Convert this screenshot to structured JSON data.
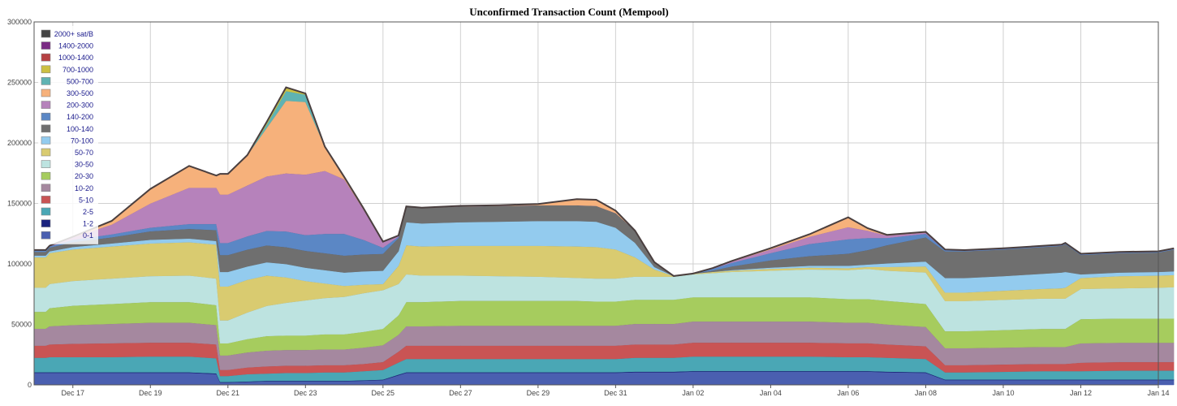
{
  "chart_data": {
    "type": "area",
    "stacked": true,
    "title": "Unconfirmed Transaction Count (Mempool)",
    "xlabel": "",
    "ylabel": "",
    "ylim": [
      0,
      300000
    ],
    "y_ticks": [
      "0",
      "50000",
      "100000",
      "150000",
      "200000",
      "250000",
      "300000"
    ],
    "y_tick_values": [
      0,
      50000,
      100000,
      150000,
      200000,
      250000,
      300000
    ],
    "x_range_days": [
      0,
      29
    ],
    "x_ticks": [
      {
        "day": 1,
        "label": "Dec 17"
      },
      {
        "day": 3,
        "label": "Dec 19"
      },
      {
        "day": 5,
        "label": "Dec 21"
      },
      {
        "day": 7,
        "label": "Dec 23"
      },
      {
        "day": 9,
        "label": "Dec 25"
      },
      {
        "day": 11,
        "label": "Dec 27"
      },
      {
        "day": 13,
        "label": "Dec 29"
      },
      {
        "day": 15,
        "label": "Dec 31"
      },
      {
        "day": 17,
        "label": "Jan 02"
      },
      {
        "day": 19,
        "label": "Jan 04"
      },
      {
        "day": 21,
        "label": "Jan 06"
      },
      {
        "day": 23,
        "label": "Jan 08"
      },
      {
        "day": 25,
        "label": "Jan 10"
      },
      {
        "day": 27,
        "label": "Jan 12"
      },
      {
        "day": 29,
        "label": "Jan 14"
      }
    ],
    "grid": true,
    "legend_position": "top-left",
    "x": [
      0,
      0.3,
      0.4,
      1.0,
      2.0,
      3.0,
      4.0,
      4.7,
      4.8,
      5.0,
      5.5,
      6.0,
      6.5,
      7.0,
      7.5,
      8.0,
      8.5,
      9.0,
      9.4,
      9.6,
      10.0,
      11.0,
      12.0,
      13.0,
      14.0,
      14.5,
      15.0,
      15.5,
      16.0,
      16.5,
      17.0,
      17.5,
      18.0,
      19.0,
      20.0,
      21.0,
      21.5,
      22.0,
      23.0,
      23.5,
      24.0,
      25.0,
      26.0,
      26.5,
      26.6,
      27.0,
      28.0,
      29.0,
      29.4
    ],
    "series": [
      {
        "name": "0-1",
        "color": "#4a5fb0",
        "values": [
          10000,
          10000,
          10000,
          10000,
          10000,
          10000,
          10000,
          9000,
          2000,
          2000,
          2500,
          3000,
          3000,
          3000,
          3000,
          3000,
          3500,
          4000,
          8000,
          10000,
          10000,
          10000,
          10000,
          10000,
          10000,
          10000,
          10000,
          10500,
          10500,
          10500,
          11000,
          11000,
          11000,
          11000,
          11000,
          11000,
          11000,
          10500,
          10000,
          4000,
          4000,
          4000,
          4000,
          4000,
          4000,
          4000,
          4000,
          4000,
          4000
        ]
      },
      {
        "name": "1-2",
        "color": "#1a237e",
        "values": [
          500,
          500,
          500,
          500,
          500,
          500,
          500,
          500,
          400,
          400,
          400,
          400,
          400,
          400,
          400,
          400,
          400,
          400,
          500,
          500,
          500,
          500,
          500,
          500,
          500,
          500,
          500,
          500,
          500,
          500,
          500,
          500,
          500,
          500,
          500,
          500,
          500,
          500,
          500,
          400,
          400,
          400,
          400,
          400,
          400,
          400,
          400,
          400,
          400
        ]
      },
      {
        "name": "2-5",
        "color": "#4aa7b5",
        "values": [
          12000,
          12000,
          12500,
          12500,
          12500,
          13000,
          13000,
          12500,
          5000,
          5000,
          6000,
          6000,
          6500,
          6500,
          7000,
          7000,
          7500,
          8000,
          10000,
          11000,
          11000,
          11000,
          11000,
          11000,
          11000,
          11000,
          11000,
          11500,
          11500,
          11500,
          12000,
          12000,
          12000,
          12000,
          12000,
          11500,
          11500,
          11500,
          11000,
          6000,
          6000,
          6500,
          7000,
          7000,
          7000,
          7000,
          7500,
          7500,
          7500
        ]
      },
      {
        "name": "5-10",
        "color": "#c95454",
        "values": [
          10000,
          10000,
          10500,
          11000,
          11500,
          11500,
          11500,
          11500,
          5000,
          5000,
          5500,
          6000,
          6000,
          6000,
          6000,
          6000,
          6000,
          6500,
          9000,
          11000,
          11000,
          11000,
          11000,
          11000,
          11000,
          11000,
          11000,
          11000,
          11000,
          11000,
          11500,
          11500,
          11500,
          11500,
          11500,
          11500,
          11500,
          11000,
          10500,
          6000,
          6000,
          6000,
          6000,
          6000,
          6000,
          7000,
          7000,
          7000,
          7000
        ]
      },
      {
        "name": "10-20",
        "color": "#a5889f",
        "values": [
          14000,
          14000,
          15000,
          15500,
          16000,
          16500,
          16500,
          16000,
          12000,
          12000,
          12500,
          13000,
          13000,
          13000,
          13000,
          13000,
          13500,
          14000,
          14000,
          16000,
          16000,
          16500,
          16500,
          16500,
          16500,
          16500,
          16500,
          17000,
          17000,
          17000,
          17500,
          17500,
          17500,
          17500,
          17500,
          17000,
          17000,
          16500,
          16000,
          14000,
          14000,
          14000,
          14000,
          14000,
          14000,
          16000,
          16000,
          16000,
          16000
        ]
      },
      {
        "name": "20-30",
        "color": "#a6cc5e",
        "values": [
          14000,
          14000,
          15000,
          16000,
          16500,
          17000,
          17000,
          16500,
          10000,
          10000,
          11000,
          12000,
          12000,
          12000,
          12500,
          12500,
          13000,
          13500,
          16000,
          20000,
          20000,
          20500,
          20500,
          20500,
          20500,
          20000,
          20000,
          20000,
          20000,
          20000,
          20000,
          20000,
          20000,
          20000,
          20000,
          19500,
          19500,
          19500,
          19000,
          14000,
          14000,
          14500,
          15000,
          15000,
          15000,
          20000,
          20000,
          20000,
          20000
        ]
      },
      {
        "name": "30-50",
        "color": "#bde3e0",
        "values": [
          20000,
          20000,
          20000,
          20500,
          21000,
          21500,
          22000,
          22000,
          19000,
          19000,
          22000,
          25000,
          27000,
          29000,
          30000,
          31000,
          32000,
          32000,
          26000,
          23000,
          22000,
          21000,
          20500,
          20000,
          19000,
          19000,
          19000,
          19000,
          19000,
          19000,
          19000,
          20000,
          21000,
          22000,
          23000,
          24000,
          25000,
          25000,
          26000,
          25000,
          25000,
          25000,
          25000,
          25000,
          25000,
          25000,
          25000,
          25500,
          26000
        ]
      },
      {
        "name": "50-70",
        "color": "#d9cb70",
        "values": [
          25000,
          25000,
          25500,
          26000,
          26500,
          27000,
          27500,
          28000,
          28000,
          28000,
          27000,
          25000,
          21000,
          16000,
          12000,
          9000,
          7000,
          5000,
          15000,
          24000,
          24000,
          24500,
          25000,
          25500,
          26000,
          26000,
          24000,
          16000,
          6000,
          500,
          500,
          1000,
          1000,
          1500,
          1500,
          1500,
          1500,
          3000,
          5000,
          7000,
          7000,
          7500,
          8000,
          8500,
          9000,
          9000,
          10000,
          10000,
          10000
        ]
      },
      {
        "name": "70-100",
        "color": "#93cbee",
        "values": [
          1500,
          1500,
          1500,
          2000,
          2500,
          3000,
          3000,
          3000,
          12000,
          12000,
          11000,
          11000,
          11000,
          11000,
          11000,
          11000,
          11000,
          11000,
          12000,
          19000,
          19000,
          19500,
          20000,
          20500,
          21000,
          21000,
          18000,
          12000,
          2000,
          0,
          0,
          0,
          500,
          1000,
          1500,
          2000,
          2000,
          3000,
          4000,
          12000,
          12000,
          12000,
          12500,
          13000,
          13000,
          3000,
          3000,
          3000,
          3000
        ]
      },
      {
        "name": "100-140",
        "color": "#6f6f6f",
        "values": [
          3000,
          3000,
          3000,
          4000,
          5000,
          7000,
          8000,
          9000,
          14000,
          14000,
          14000,
          14000,
          14000,
          14000,
          14000,
          14000,
          14000,
          14000,
          11000,
          13000,
          13000,
          13000,
          13000,
          13000,
          13000,
          13000,
          12000,
          10000,
          4000,
          0,
          0,
          1000,
          3000,
          6000,
          8000,
          10000,
          12000,
          15000,
          20000,
          22000,
          22000,
          22000,
          22000,
          22000,
          23000,
          16000,
          16000,
          16000,
          18000
        ]
      },
      {
        "name": "140-200",
        "color": "#5b87c5",
        "values": [
          1000,
          1000,
          1000,
          2000,
          2500,
          3000,
          4000,
          5000,
          10000,
          10000,
          11000,
          12000,
          13000,
          13000,
          16000,
          18000,
          12000,
          5000,
          1000,
          0,
          0,
          0,
          0,
          0,
          0,
          0,
          0,
          0,
          0,
          0,
          0,
          1500,
          3000,
          6000,
          10000,
          12000,
          10000,
          6000,
          3000,
          1000,
          500,
          500,
          500,
          500,
          500,
          500,
          500,
          500,
          500
        ]
      },
      {
        "name": "200-300",
        "color": "#b682bb",
        "values": [
          500,
          500,
          500,
          2000,
          8000,
          20000,
          30000,
          30000,
          40000,
          40000,
          42000,
          45000,
          48000,
          50000,
          52000,
          45000,
          25000,
          5000,
          1000,
          0,
          0,
          0,
          0,
          0,
          0,
          0,
          0,
          0,
          0,
          0,
          0,
          500,
          1000,
          3000,
          6000,
          10000,
          6000,
          2000,
          1000,
          500,
          500,
          500,
          500,
          500,
          500,
          500,
          500,
          500,
          500
        ]
      },
      {
        "name": "300-500",
        "color": "#f6b17b",
        "values": [
          0,
          0,
          0,
          500,
          3000,
          12000,
          18000,
          10000,
          17000,
          17000,
          25000,
          40000,
          60000,
          60000,
          20000,
          2000,
          1000,
          0,
          0,
          0,
          0,
          500,
          500,
          1000,
          5000,
          5000,
          2000,
          0,
          0,
          0,
          0,
          0,
          500,
          1000,
          2000,
          8000,
          2000,
          500,
          500,
          0,
          0,
          0,
          0,
          0,
          0,
          0,
          0,
          0,
          0
        ]
      },
      {
        "name": "500-700",
        "color": "#5fb3b3",
        "values": [
          0,
          0,
          0,
          0,
          0,
          0,
          0,
          0,
          0,
          0,
          0,
          3000,
          8000,
          6000,
          0,
          0,
          0,
          0,
          0,
          0,
          0,
          0,
          0,
          0,
          0,
          0,
          0,
          0,
          0,
          0,
          0,
          0,
          0,
          0,
          0,
          0,
          0,
          0,
          0,
          0,
          0,
          0,
          0,
          0,
          0,
          0,
          0,
          0,
          0
        ]
      },
      {
        "name": "700-1000",
        "color": "#ccc042",
        "values": [
          0,
          0,
          0,
          0,
          0,
          0,
          0,
          0,
          0,
          0,
          0,
          2000,
          3000,
          1000,
          0,
          0,
          0,
          0,
          0,
          0,
          0,
          0,
          0,
          0,
          0,
          0,
          0,
          0,
          0,
          0,
          0,
          0,
          0,
          0,
          0,
          0,
          0,
          0,
          0,
          0,
          0,
          0,
          0,
          0,
          0,
          0,
          0,
          0,
          0
        ]
      },
      {
        "name": "1000-1400",
        "color": "#b64143",
        "values": [
          0,
          0,
          0,
          0,
          0,
          0,
          0,
          0,
          0,
          0,
          0,
          0,
          0,
          0,
          0,
          0,
          0,
          0,
          0,
          0,
          0,
          0,
          0,
          0,
          0,
          0,
          0,
          0,
          0,
          0,
          0,
          0,
          0,
          0,
          0,
          0,
          0,
          0,
          0,
          0,
          0,
          0,
          0,
          0,
          0,
          0,
          0,
          0,
          0
        ]
      },
      {
        "name": "1400-2000",
        "color": "#7a2c84",
        "values": [
          0,
          0,
          0,
          0,
          0,
          0,
          0,
          0,
          0,
          0,
          0,
          0,
          0,
          0,
          0,
          0,
          0,
          0,
          0,
          0,
          0,
          0,
          0,
          0,
          0,
          0,
          0,
          0,
          0,
          0,
          0,
          0,
          0,
          0,
          0,
          0,
          0,
          0,
          0,
          0,
          0,
          0,
          0,
          0,
          0,
          0,
          0,
          0,
          0
        ]
      },
      {
        "name": "2000+ sat/B",
        "color": "#454545",
        "values": [
          0,
          0,
          0,
          0,
          0,
          0,
          0,
          0,
          0,
          0,
          0,
          0,
          0,
          0,
          0,
          0,
          0,
          0,
          0,
          0,
          0,
          0,
          0,
          0,
          0,
          0,
          0,
          0,
          0,
          0,
          0,
          0,
          0,
          0,
          0,
          0,
          0,
          0,
          0,
          0,
          0,
          0,
          0,
          0,
          0,
          0,
          0,
          0,
          0
        ]
      }
    ],
    "total_line_color": "#4a3f3f",
    "legend_order": [
      "2000+ sat/B",
      "1400-2000",
      "1000-1400",
      "700-1000",
      "500-700",
      "300-500",
      "200-300",
      "140-200",
      "100-140",
      "70-100",
      "50-70",
      "30-50",
      "20-30",
      "10-20",
      "5-10",
      "2-5",
      "1-2",
      "0-1"
    ]
  }
}
